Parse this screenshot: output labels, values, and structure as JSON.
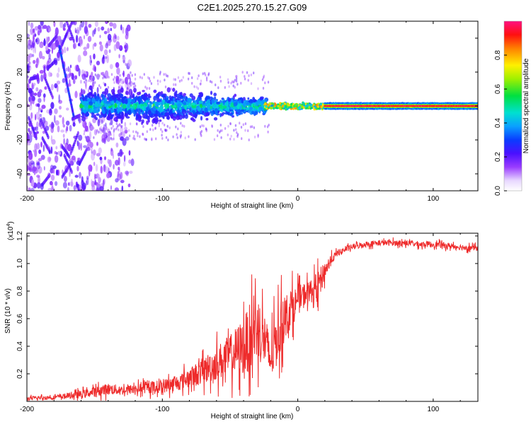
{
  "figure": {
    "title": "C2E1.2025.270.15.27.G09"
  },
  "chart_data": [
    {
      "type": "heatmap",
      "xlabel": "Height of straight line (km)",
      "ylabel": "Frequency (Hz)",
      "xlim": [
        -200,
        133
      ],
      "ylim": [
        -50,
        50
      ],
      "xticks": [
        -200,
        -100,
        0,
        100
      ],
      "yticks": [
        -40,
        -20,
        0,
        20,
        40
      ],
      "colorbar": {
        "label": "Normalized spectral amplitude",
        "range": [
          0,
          1
        ],
        "ticks": [
          "0.0",
          "0.2",
          "0.4",
          "0.6",
          "0.8"
        ],
        "colormap": "rainbow (white-violet-blue-cyan-green-yellow-red-pink)"
      },
      "description_regions": [
        {
          "x_range": [
            -200,
            -160
          ],
          "freq_spread": [
            -50,
            50
          ],
          "amplitude": "low (0.1-0.25), scattered violet"
        },
        {
          "x_range": [
            -160,
            -25
          ],
          "freq_spread": [
            -12,
            12
          ],
          "amplitude": "medium (0.2-0.5), blue/cyan"
        },
        {
          "x_range": [
            -25,
            20
          ],
          "freq_spread": [
            -3,
            3
          ],
          "amplitude": "high (0.5-0.9), green to red"
        },
        {
          "x_range": [
            20,
            133
          ],
          "freq_spread": [
            -1.5,
            1.5
          ],
          "amplitude": "very high (0.8-1.0), red line at 0 Hz"
        }
      ]
    },
    {
      "type": "line",
      "xlabel": "Height of straight line (km)",
      "ylabel": "SNR (10 * v/v)",
      "scale_label": "(x10",
      "scale_exp": "4",
      "xlim": [
        -200,
        133
      ],
      "ylim": [
        0,
        1.22
      ],
      "xticks": [
        -200,
        -100,
        0,
        100
      ],
      "yticks": [
        "0.2",
        "0.4",
        "0.6",
        "0.8",
        "1.0",
        "1.2"
      ],
      "color": "#ee2b2b",
      "series": [
        {
          "name": "SNR",
          "x": [
            -200,
            -180,
            -160,
            -150,
            -140,
            -130,
            -120,
            -110,
            -100,
            -90,
            -80,
            -70,
            -60,
            -50,
            -40,
            -35,
            -30,
            -25,
            -20,
            -15,
            -10,
            -5,
            0,
            5,
            10,
            15,
            20,
            25,
            30,
            40,
            50,
            60,
            70,
            80,
            90,
            100,
            110,
            120,
            133
          ],
          "y": [
            0.02,
            0.03,
            0.05,
            0.07,
            0.09,
            0.08,
            0.09,
            0.1,
            0.11,
            0.13,
            0.17,
            0.22,
            0.28,
            0.33,
            0.4,
            0.47,
            0.55,
            0.45,
            0.3,
            0.48,
            0.6,
            0.68,
            0.73,
            0.78,
            0.8,
            0.84,
            0.95,
            1.03,
            1.08,
            1.12,
            1.14,
            1.15,
            1.15,
            1.15,
            1.14,
            1.14,
            1.13,
            1.12,
            1.11
          ],
          "noise": [
            0.02,
            0.02,
            0.04,
            0.05,
            0.06,
            0.05,
            0.05,
            0.06,
            0.07,
            0.08,
            0.1,
            0.14,
            0.18,
            0.22,
            0.3,
            0.35,
            0.35,
            0.3,
            0.25,
            0.3,
            0.25,
            0.2,
            0.15,
            0.12,
            0.12,
            0.15,
            0.1,
            0.05,
            0.03,
            0.03,
            0.03,
            0.03,
            0.03,
            0.03,
            0.03,
            0.03,
            0.03,
            0.03,
            0.03
          ]
        }
      ]
    }
  ]
}
